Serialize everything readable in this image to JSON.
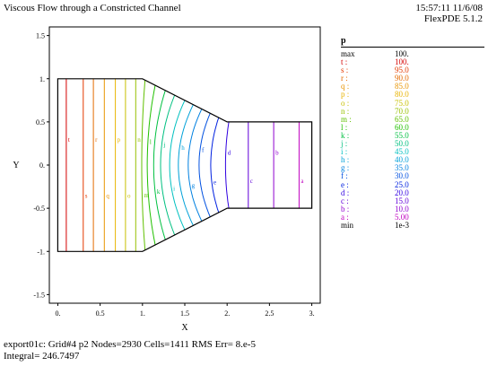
{
  "header": {
    "title": "Viscous Flow through a Constricted Channel",
    "timestamp": "15:57:11 11/6/08",
    "version": "FlexPDE 5.1.2"
  },
  "footer": {
    "run_info": "export01c:  Grid#4  p2  Nodes=2930 Cells=1411 RMS Err= 8.e-5",
    "integral": "Integral=  246.7497"
  },
  "legend": {
    "variable": "p",
    "rows": [
      {
        "key": "max",
        "value": "100.",
        "color": "#000000"
      },
      {
        "key": "t :",
        "value": "100.",
        "color": "#d40000"
      },
      {
        "key": "s :",
        "value": "95.0",
        "color": "#e43a00"
      },
      {
        "key": "r :",
        "value": "90.0",
        "color": "#e46a00"
      },
      {
        "key": "q :",
        "value": "85.0",
        "color": "#e89400"
      },
      {
        "key": "p :",
        "value": "80.0",
        "color": "#e8b400"
      },
      {
        "key": "o :",
        "value": "75.0",
        "color": "#c8c000"
      },
      {
        "key": "n :",
        "value": "70.0",
        "color": "#98c000"
      },
      {
        "key": "m :",
        "value": "65.0",
        "color": "#60c000"
      },
      {
        "key": "l :",
        "value": "60.0",
        "color": "#20c000"
      },
      {
        "key": "k :",
        "value": "55.0",
        "color": "#00c040"
      },
      {
        "key": "j :",
        "value": "50.0",
        "color": "#00c080"
      },
      {
        "key": "i :",
        "value": "45.0",
        "color": "#00c0c0"
      },
      {
        "key": "h :",
        "value": "40.0",
        "color": "#00a0d8"
      },
      {
        "key": "g :",
        "value": "35.0",
        "color": "#0080e0"
      },
      {
        "key": "f :",
        "value": "30.0",
        "color": "#0050e0"
      },
      {
        "key": "e :",
        "value": "25.0",
        "color": "#0020e0"
      },
      {
        "key": "d :",
        "value": "20.0",
        "color": "#3000e0"
      },
      {
        "key": "c :",
        "value": "15.0",
        "color": "#6000d8"
      },
      {
        "key": "b :",
        "value": "10.0",
        "color": "#9000d0"
      },
      {
        "key": "a :",
        "value": "5.00",
        "color": "#c000c0"
      },
      {
        "key": "min",
        "value": "1e-3",
        "color": "#000000"
      }
    ]
  },
  "chart_data": {
    "type": "contour",
    "xlabel": "X",
    "ylabel": "Y",
    "xlim": [
      -0.1,
      3.1
    ],
    "ylim": [
      -1.6,
      1.6
    ],
    "xticks": [
      0,
      0.5,
      1,
      1.5,
      2,
      2.5,
      3
    ],
    "xtick_labels": [
      "0.",
      "0.5",
      "1.",
      "1.5",
      "2.",
      "2.5",
      "3."
    ],
    "yticks": [
      1.5,
      1,
      0.5,
      0,
      -0.5,
      -1,
      -1.5
    ],
    "ytick_labels": [
      "1.5",
      "1.",
      "0.5",
      "0.",
      "-0.5",
      "-1.",
      "-1.5"
    ],
    "domain_outline": [
      [
        0,
        1
      ],
      [
        1,
        1
      ],
      [
        2,
        0.5
      ],
      [
        3,
        0.5
      ],
      [
        3,
        -0.5
      ],
      [
        2,
        -0.5
      ],
      [
        1,
        -1
      ],
      [
        0,
        -1
      ]
    ],
    "contours": [
      {
        "label": "t",
        "level": 100,
        "color": "#d40000",
        "x": 0.1
      },
      {
        "label": "s",
        "level": 95,
        "color": "#e43a00",
        "x": 0.3
      },
      {
        "label": "r",
        "level": 90,
        "color": "#e46a00",
        "x": 0.42
      },
      {
        "label": "q",
        "level": 85,
        "color": "#e89400",
        "x": 0.55
      },
      {
        "label": "p",
        "level": 80,
        "color": "#e8b400",
        "x": 0.68
      },
      {
        "label": "o",
        "level": 75,
        "color": "#c8c000",
        "x": 0.8
      },
      {
        "label": "n",
        "level": 70,
        "color": "#98c000",
        "x": 0.92
      },
      {
        "label": "m",
        "level": 65,
        "color": "#60c000",
        "x": 1.03
      },
      {
        "label": "l",
        "level": 60,
        "color": "#20c000",
        "x": 1.15
      },
      {
        "label": "k",
        "level": 55,
        "color": "#00c040",
        "x": 1.27
      },
      {
        "label": "j",
        "level": 50,
        "color": "#00c080",
        "x": 1.38
      },
      {
        "label": "i",
        "level": 45,
        "color": "#00c0c0",
        "x": 1.5
      },
      {
        "label": "h",
        "level": 40,
        "color": "#00a0d8",
        "x": 1.6
      },
      {
        "label": "g",
        "level": 35,
        "color": "#0080e0",
        "x": 1.7
      },
      {
        "label": "f",
        "level": 30,
        "color": "#0050e0",
        "x": 1.8
      },
      {
        "label": "e",
        "level": 25,
        "color": "#0020e0",
        "x": 1.9
      },
      {
        "label": "d",
        "level": 20,
        "color": "#3000e0",
        "x": 2.02
      },
      {
        "label": "c",
        "level": 15,
        "color": "#6000d8",
        "x": 2.25
      },
      {
        "label": "b",
        "level": 10,
        "color": "#9000d0",
        "x": 2.55
      },
      {
        "label": "a",
        "level": 5,
        "color": "#c000c0",
        "x": 2.85
      }
    ]
  }
}
